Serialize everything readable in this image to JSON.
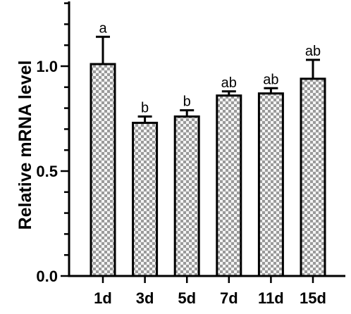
{
  "chart_data": {
    "type": "bar",
    "title": "",
    "xlabel": "",
    "ylabel": "Relative mRNA level",
    "categories": [
      "1d",
      "3d",
      "5d",
      "7d",
      "11d",
      "15d"
    ],
    "values": [
      1.01,
      0.73,
      0.76,
      0.86,
      0.87,
      0.94
    ],
    "error": [
      0.13,
      0.03,
      0.03,
      0.02,
      0.025,
      0.09
    ],
    "significance": [
      "a",
      "b",
      "b",
      "ab",
      "ab",
      "ab"
    ],
    "ylim": [
      0,
      1.3
    ],
    "yticks": [
      0.0,
      0.5,
      1.0
    ],
    "ytick_labels": [
      "0.0",
      "0.5",
      "1.0"
    ],
    "grid": false,
    "legend": "none",
    "bar_fill": "checkered gray",
    "colors": {
      "bar_dark": "#9a9a9a",
      "bar_light": "#f4f4f4",
      "stroke": "#000000"
    }
  }
}
